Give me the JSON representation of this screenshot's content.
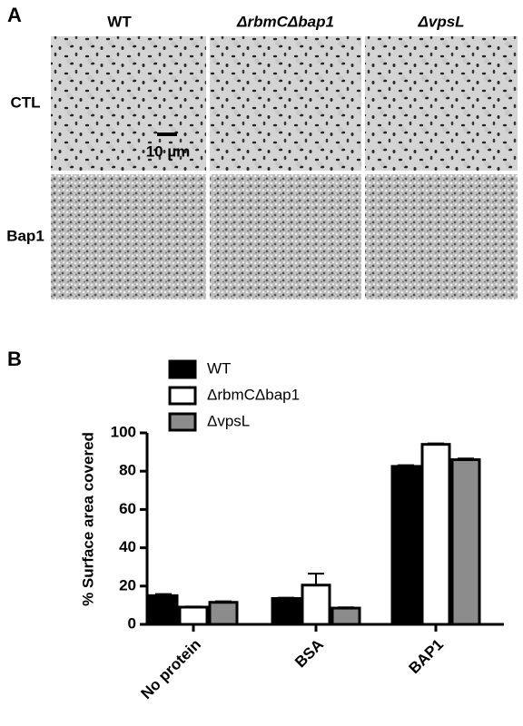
{
  "panel_a": {
    "panel_label": "A",
    "columns": [
      "WT",
      "ΔrbmCΔbap1",
      "ΔvpsL"
    ],
    "rows": [
      "CTL",
      "Bap1"
    ],
    "scale_bar": "10 µm"
  },
  "chart_data": {
    "type": "bar",
    "panel_label": "B",
    "y_label": "% Surface area covered",
    "categories": [
      "No protein",
      "BSA",
      "BAP1"
    ],
    "series": [
      {
        "name": "WT",
        "color": "#000000",
        "values": [
          15,
          13.5,
          82.5
        ],
        "errors": [
          0.8,
          0.4,
          0.6
        ]
      },
      {
        "name": "ΔrbmCΔbap1",
        "color": "#ffffff",
        "values": [
          9,
          20.5,
          94
        ],
        "errors": [
          0.3,
          6,
          0.5
        ]
      },
      {
        "name": "ΔvpsL",
        "color": "#8c8c8c",
        "values": [
          11.5,
          8.5,
          86
        ],
        "errors": [
          0.5,
          0.4,
          0.6
        ]
      }
    ],
    "ylim": [
      0,
      100
    ],
    "yticks": [
      0,
      20,
      40,
      60,
      80,
      100
    ],
    "legend": "upper left"
  }
}
